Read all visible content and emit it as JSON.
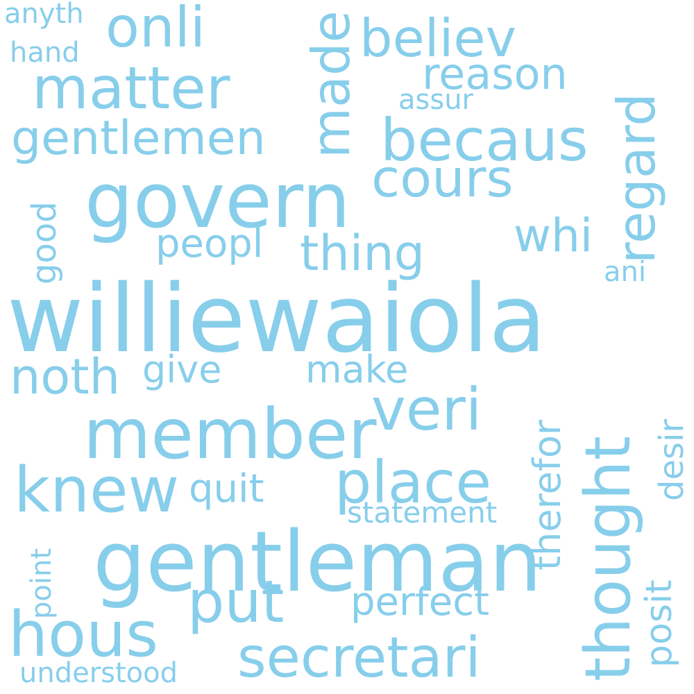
{
  "palette": {
    "background": "#ffffff",
    "word_color": "#87CEEB"
  },
  "words": {
    "williewaiola": "williewaiola",
    "gentleman": "gentleman",
    "govern": "govern",
    "member": "member",
    "secretari": "secretari",
    "thought": "thought",
    "hous": "hous",
    "knew": "knew",
    "matter": "matter",
    "becaus": "becaus",
    "regard": "regard",
    "made": "made",
    "put": "put",
    "place": "place",
    "veri": "veri",
    "believ": "believ",
    "onli": "onli",
    "gentlemen": "gentlemen",
    "cours": "cours",
    "thing": "thing",
    "noth": "noth",
    "reason": "reason",
    "whi": "whi",
    "therefor": "therefor",
    "perfect": "perfect",
    "quit": "quit",
    "give": "give",
    "make": "make",
    "peopl": "peopl",
    "statement": "statement",
    "understood": "understood",
    "posit": "posit",
    "desir": "desir",
    "good": "good",
    "point": "point",
    "assur": "assur",
    "anyth": "anyth",
    "hand": "hand",
    "ani": "ani"
  }
}
